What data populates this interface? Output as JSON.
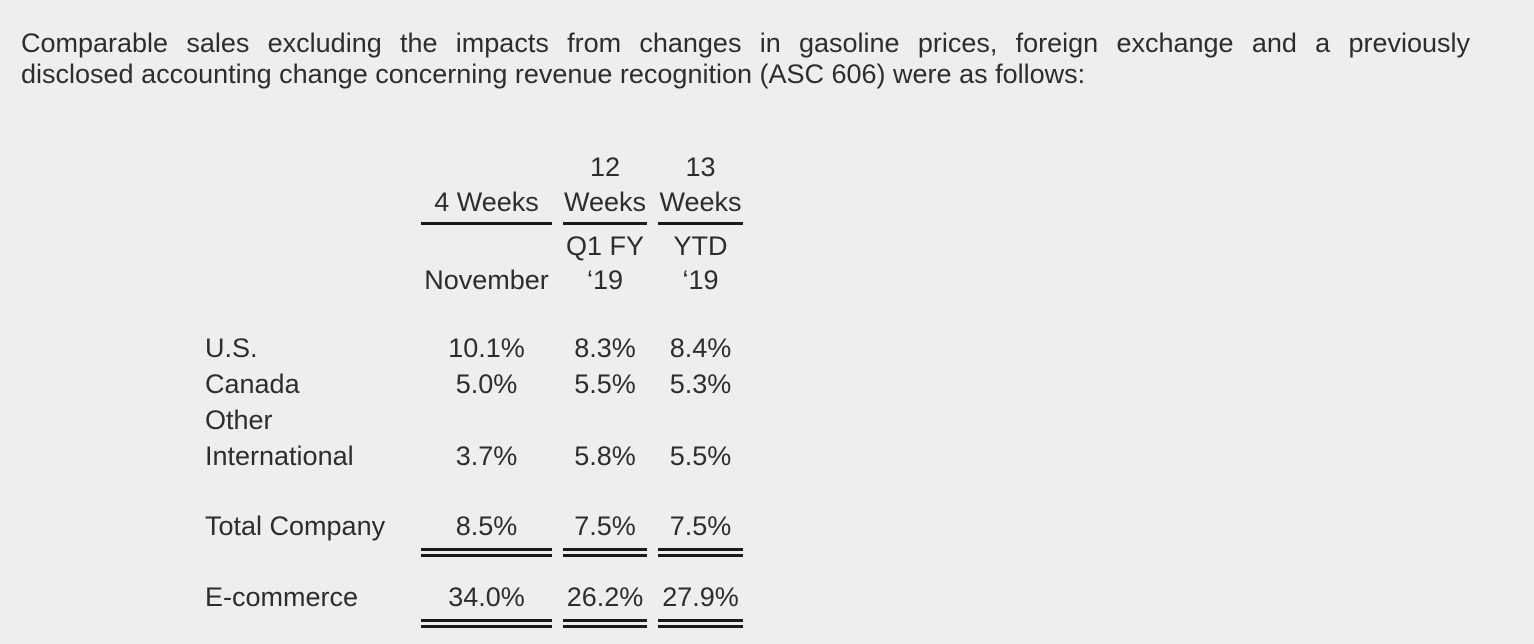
{
  "colors": {
    "background": "#eeeeee",
    "text": "#2d2d2d",
    "rule": "#1b1b1b"
  },
  "paragraph": {
    "line1": "Comparable sales excluding the impacts from changes in gasoline prices, foreign exchange and a previously",
    "line2": "disclosed accounting change concerning revenue recognition (ASC 606) were as follows:"
  },
  "table": {
    "columns": [
      {
        "period_top": "",
        "period": "4 Weeks",
        "sub_top": "",
        "sub": "November"
      },
      {
        "period_top": "12",
        "period": "Weeks",
        "sub_top": "Q1 FY",
        "sub": "‘19"
      },
      {
        "period_top": "13",
        "period": "Weeks",
        "sub_top": "YTD",
        "sub": "‘19"
      }
    ],
    "rows": [
      {
        "label": "U.S.",
        "values": [
          "10.1%",
          "8.3%",
          "8.4%"
        ]
      },
      {
        "label": "Canada",
        "values": [
          "5.0%",
          "5.5%",
          "5.3%"
        ]
      },
      {
        "label": "Other International",
        "values": [
          "3.7%",
          "5.8%",
          "5.5%"
        ]
      },
      {
        "label": "Total Company",
        "values": [
          "8.5%",
          "7.5%",
          "7.5%"
        ],
        "double_underline": true
      },
      {
        "label": "E-commerce",
        "values": [
          "34.0%",
          "26.2%",
          "27.9%"
        ],
        "double_underline": true
      }
    ]
  }
}
